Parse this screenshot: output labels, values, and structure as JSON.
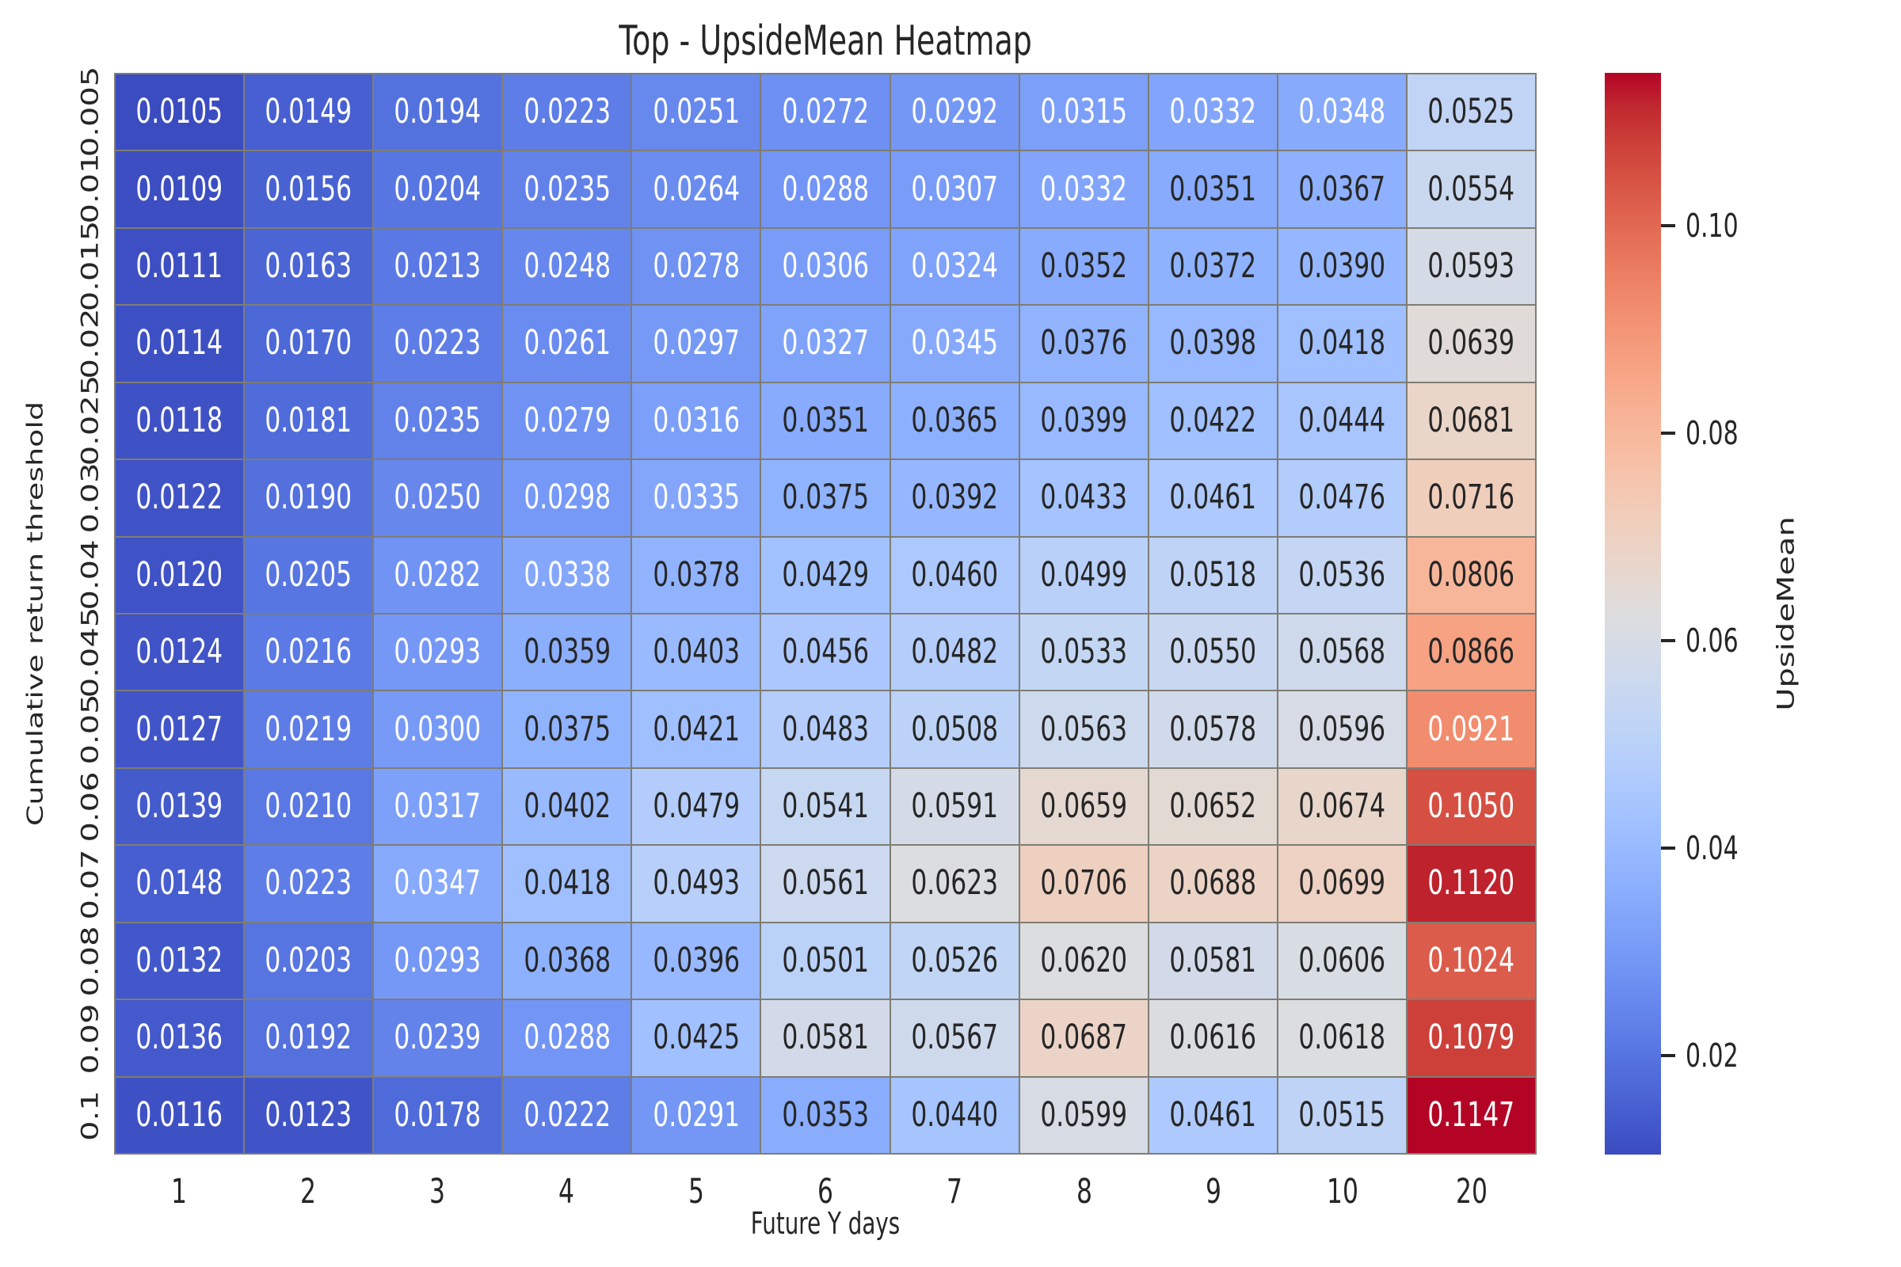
{
  "chart_data": {
    "type": "heatmap",
    "title": "Top - UpsideMean Heatmap",
    "xlabel": "Future Y days",
    "ylabel": "Cumulative return threshold",
    "x_categories": [
      "1",
      "2",
      "3",
      "4",
      "5",
      "6",
      "7",
      "8",
      "9",
      "10",
      "20"
    ],
    "y_categories": [
      "0.005",
      "0.01",
      "0.015",
      "0.02",
      "0.025",
      "0.03",
      "0.04",
      "0.045",
      "0.05",
      "0.06",
      "0.07",
      "0.08",
      "0.09",
      "0.1"
    ],
    "values": [
      [
        0.0105,
        0.0149,
        0.0194,
        0.0223,
        0.0251,
        0.0272,
        0.0292,
        0.0315,
        0.0332,
        0.0348,
        0.0525
      ],
      [
        0.0109,
        0.0156,
        0.0204,
        0.0235,
        0.0264,
        0.0288,
        0.0307,
        0.0332,
        0.0351,
        0.0367,
        0.0554
      ],
      [
        0.0111,
        0.0163,
        0.0213,
        0.0248,
        0.0278,
        0.0306,
        0.0324,
        0.0352,
        0.0372,
        0.039,
        0.0593
      ],
      [
        0.0114,
        0.017,
        0.0223,
        0.0261,
        0.0297,
        0.0327,
        0.0345,
        0.0376,
        0.0398,
        0.0418,
        0.0639
      ],
      [
        0.0118,
        0.0181,
        0.0235,
        0.0279,
        0.0316,
        0.0351,
        0.0365,
        0.0399,
        0.0422,
        0.0444,
        0.0681
      ],
      [
        0.0122,
        0.019,
        0.025,
        0.0298,
        0.0335,
        0.0375,
        0.0392,
        0.0433,
        0.0461,
        0.0476,
        0.0716
      ],
      [
        0.012,
        0.0205,
        0.0282,
        0.0338,
        0.0378,
        0.0429,
        0.046,
        0.0499,
        0.0518,
        0.0536,
        0.0806
      ],
      [
        0.0124,
        0.0216,
        0.0293,
        0.0359,
        0.0403,
        0.0456,
        0.0482,
        0.0533,
        0.055,
        0.0568,
        0.0866
      ],
      [
        0.0127,
        0.0219,
        0.03,
        0.0375,
        0.0421,
        0.0483,
        0.0508,
        0.0563,
        0.0578,
        0.0596,
        0.0921
      ],
      [
        0.0139,
        0.021,
        0.0317,
        0.0402,
        0.0479,
        0.0541,
        0.0591,
        0.0659,
        0.0652,
        0.0674,
        0.105
      ],
      [
        0.0148,
        0.0223,
        0.0347,
        0.0418,
        0.0493,
        0.0561,
        0.0623,
        0.0706,
        0.0688,
        0.0699,
        0.112
      ],
      [
        0.0132,
        0.0203,
        0.0293,
        0.0368,
        0.0396,
        0.0501,
        0.0526,
        0.062,
        0.0581,
        0.0606,
        0.1024
      ],
      [
        0.0136,
        0.0192,
        0.0239,
        0.0288,
        0.0425,
        0.0581,
        0.0567,
        0.0687,
        0.0616,
        0.0618,
        0.1079
      ],
      [
        0.0116,
        0.0123,
        0.0178,
        0.0222,
        0.0291,
        0.0353,
        0.044,
        0.0599,
        0.0461,
        0.0515,
        0.1147
      ]
    ],
    "annotation_decimals": 4,
    "colorbar": {
      "label": "UpsideMean",
      "tick_labels": [
        "0.10",
        "0.08",
        "0.06",
        "0.04",
        "0.02"
      ],
      "tick_values": [
        0.1,
        0.08,
        0.06,
        0.04,
        0.02
      ]
    },
    "colormap": {
      "name": "coolwarm",
      "anchors": [
        "#3b4cc0",
        "#445acc",
        "#4d68d7",
        "#5775e1",
        "#6282ea",
        "#6c8ef1",
        "#779af7",
        "#82a5fb",
        "#8db0fe",
        "#98b9ff",
        "#a3c2ff",
        "#aec9fd",
        "#b8d0f9",
        "#c2d5f4",
        "#ccd9ee",
        "#d5dbe6",
        "#dddddd",
        "#e5d8d1",
        "#ecd3c5",
        "#f1ccb9",
        "#f5c4ad",
        "#f7bba0",
        "#f7b194",
        "#f7a687",
        "#f49a7b",
        "#f18d6f",
        "#ec7f63",
        "#e57058",
        "#de604d",
        "#d55042",
        "#cb3e38",
        "#c0282f",
        "#b40426"
      ]
    },
    "style": {
      "background": "#ffffff",
      "grid_line_color": "#7e7d74",
      "dark_text": "#262626",
      "light_text": "#ffffff"
    }
  }
}
